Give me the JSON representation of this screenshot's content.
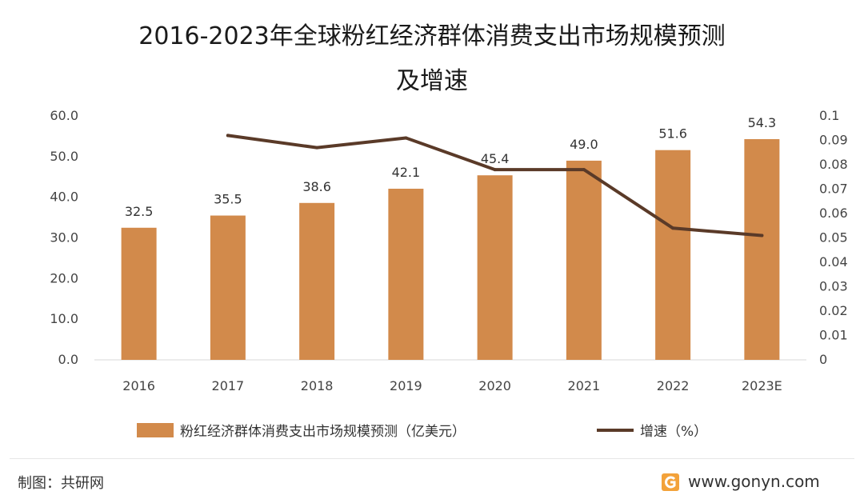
{
  "title_line1": "2016-2023年全球粉红经济群体消费支出市场规模预测",
  "title_line2": "及增速",
  "footer": {
    "source": "制图：共研网",
    "site": "www.gonyn.com"
  },
  "colors": {
    "bar": "#d28a4b",
    "line": "#5a3a28"
  },
  "chart_data": {
    "type": "bar",
    "categories": [
      "2016",
      "2017",
      "2018",
      "2019",
      "2020",
      "2021",
      "2022",
      "2023E"
    ],
    "series": [
      {
        "name": "粉红经济群体消费支出市场规模预测（亿美元）",
        "type": "bar",
        "axis": "left",
        "values": [
          32.5,
          35.5,
          38.6,
          42.1,
          45.4,
          49.0,
          51.6,
          54.3
        ],
        "labels": [
          "32.5",
          "35.5",
          "38.6",
          "42.1",
          "45.4",
          "49.0",
          "51.6",
          "54.3"
        ]
      },
      {
        "name": "增速（%）",
        "type": "line",
        "axis": "right",
        "values": [
          null,
          0.092,
          0.087,
          0.091,
          0.078,
          0.078,
          0.054,
          0.051
        ]
      }
    ],
    "ylim_left": [
      0,
      60
    ],
    "yticks_left": [
      "0.0",
      "10.0",
      "20.0",
      "30.0",
      "40.0",
      "50.0",
      "60.0"
    ],
    "ylim_right": [
      0,
      0.1
    ],
    "yticks_right": [
      "0",
      "0.01",
      "0.02",
      "0.03",
      "0.04",
      "0.05",
      "0.06",
      "0.07",
      "0.08",
      "0.09",
      "0.1"
    ],
    "grid": false,
    "legend": "bottom"
  }
}
